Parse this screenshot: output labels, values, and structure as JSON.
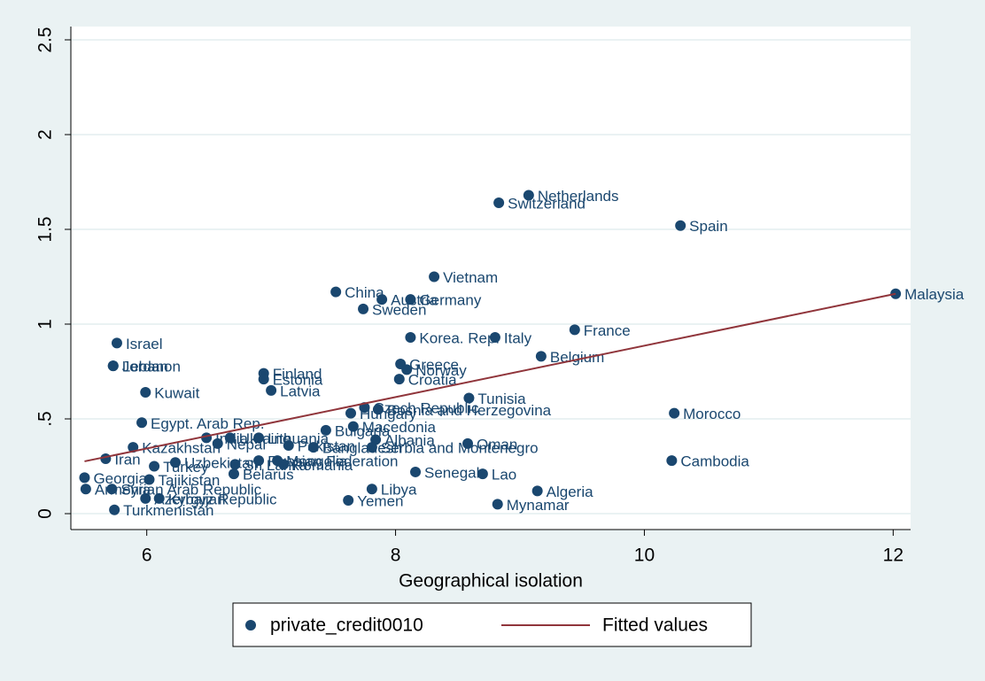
{
  "chart_data": {
    "type": "scatter",
    "x_label": "Geographical isolation",
    "xlim": [
      5.39,
      12.14
    ],
    "xticks": [
      6,
      8,
      10,
      12
    ],
    "ylim": [
      -0.084,
      2.57
    ],
    "yticks": [
      0,
      {
        "value": 0.5,
        "label": ".5"
      },
      1,
      1.5,
      2,
      2.5
    ],
    "grid": true,
    "legend": "bottom",
    "series": [
      {
        "name": "private_credit0010",
        "type": "scatter",
        "color": "#1a476f",
        "x": [
          9.07,
          8.83,
          10.29,
          12.02,
          8.31,
          7.52,
          7.89,
          8.12,
          7.74,
          9.44,
          8.12,
          8.8,
          5.76,
          9.17,
          5.73,
          5.73,
          8.04,
          8.09,
          6.94,
          6.94,
          8.03,
          7.0,
          5.99,
          8.59,
          7.75,
          7.86,
          7.64,
          10.24,
          5.96,
          7.66,
          7.44,
          6.9,
          7.84,
          8.58,
          5.89,
          7.81,
          5.67,
          10.22,
          8.16,
          8.7,
          5.5,
          6.7,
          7.81,
          9.14,
          5.51,
          5.72,
          6.02,
          7.62,
          8.82,
          6.1,
          5.99,
          5.74,
          6.48,
          6.57,
          6.67,
          7.34,
          7.14,
          6.06,
          6.23,
          6.9,
          7.05,
          7.1,
          6.71
        ],
        "values": [
          1.68,
          1.64,
          1.52,
          1.16,
          1.25,
          1.17,
          1.13,
          1.13,
          1.08,
          0.97,
          0.93,
          0.93,
          0.9,
          0.83,
          0.78,
          0.78,
          0.79,
          0.76,
          0.74,
          0.71,
          0.71,
          0.65,
          0.64,
          0.61,
          0.56,
          0.55,
          0.53,
          0.53,
          0.48,
          0.46,
          0.44,
          0.4,
          0.39,
          0.37,
          0.35,
          0.35,
          0.29,
          0.28,
          0.22,
          0.21,
          0.19,
          0.21,
          0.13,
          0.12,
          0.13,
          0.13,
          0.18,
          0.07,
          0.05,
          0.08,
          0.08,
          0.02,
          0.4,
          0.37,
          0.4,
          0.35,
          0.36,
          0.25,
          0.27,
          0.28,
          0.28,
          0.26,
          0.26
        ],
        "labels": [
          "Netherlands",
          "Switzerland",
          "Spain",
          "Malaysia",
          "Vietnam",
          "China",
          "Austria",
          "Germany",
          "Sweden",
          "France",
          "Korea. Rep.",
          "Italy",
          "Israel",
          "Belgium",
          "Jordan",
          "Lebanon",
          "Greece",
          "Norway",
          "Finland",
          "Estonia",
          "Croatia",
          "Latvia",
          "Kuwait",
          "Tunisia",
          "Czech Republic",
          "Bosnia and Herzegovina",
          "Hungary",
          "Morocco",
          "Egypt. Arab Rep.",
          "Macedonia",
          "Bulgaria",
          "Lithuania",
          "Albania",
          "Oman",
          "Kazakhstan",
          "Serbia and Montenegro",
          "Iran",
          "Cambodia",
          "Senegal",
          "Lao",
          "Georgia",
          "Belarus",
          "Libya",
          "Algeria",
          "Armenia",
          "Syrian Arab Republic",
          "Tajikistan",
          "Yemen",
          "Mynamar",
          "Kyrgyz Republic",
          "Azerbaijan",
          "Turkmenistan",
          "India",
          "Nepal",
          "Ukraine",
          "Bangladesh",
          "Pakistan",
          "Turkey",
          "Uzbekistan",
          "Russian Federation",
          "Mongolia",
          "Romania",
          "Sri Lanka"
        ]
      },
      {
        "name": "Fitted values",
        "type": "line",
        "color": "#90353b",
        "x": [
          5.5,
          12.02
        ],
        "values": [
          0.276,
          1.16
        ]
      }
    ]
  }
}
